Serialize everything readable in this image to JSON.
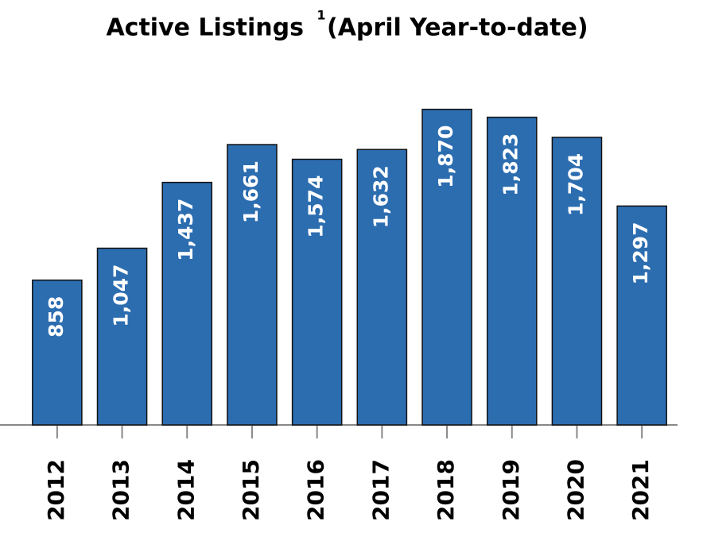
{
  "chart_data": {
    "type": "bar",
    "title": "Active Listings",
    "title_footnote": "1",
    "subtitle": "(April Year-to-date)",
    "categories": [
      "2012",
      "2013",
      "2014",
      "2015",
      "2016",
      "2017",
      "2018",
      "2019",
      "2020",
      "2021"
    ],
    "values": [
      858,
      1047,
      1437,
      1661,
      1574,
      1632,
      1870,
      1823,
      1704,
      1297
    ],
    "value_labels": [
      "858",
      "1,047",
      "1,437",
      "1,661",
      "1,574",
      "1,632",
      "1,870",
      "1,823",
      "1,704",
      "1,297"
    ],
    "color": "#2c6db0",
    "ylim": [
      0,
      2000
    ]
  }
}
